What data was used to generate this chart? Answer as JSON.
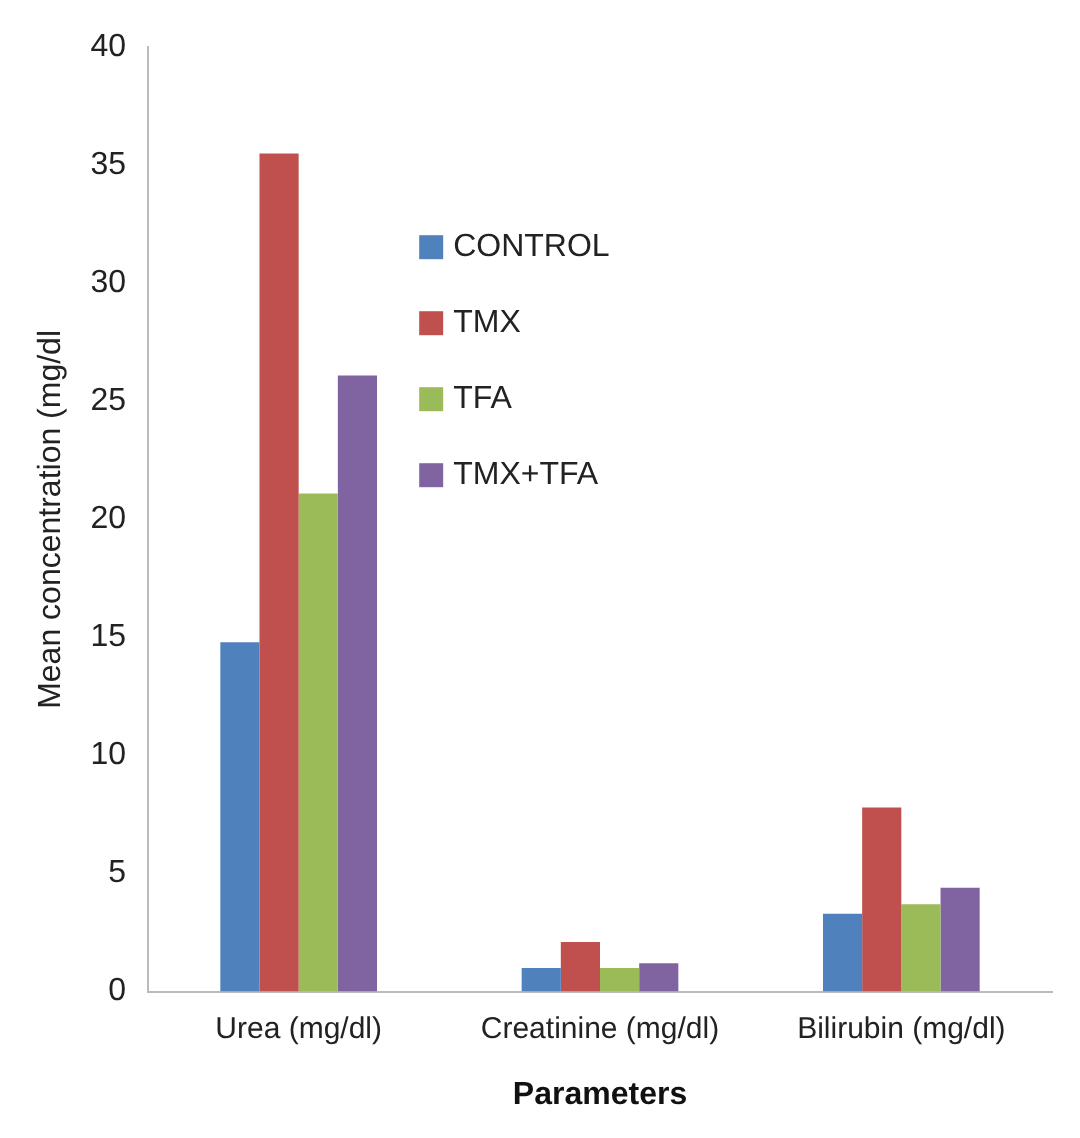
{
  "chart_data": {
    "type": "bar",
    "xlabel": "Parameters",
    "ylabel": "Mean concentration (mg/dl",
    "categories": [
      "Urea (mg/dl)",
      "Creatinine (mg/dl)",
      "Bilirubin (mg/dl)"
    ],
    "series": [
      {
        "name": "CONTROL",
        "color": "#4f81bd",
        "values": [
          14.8,
          1.0,
          3.3
        ]
      },
      {
        "name": "TMX",
        "color": "#c0504d",
        "values": [
          35.5,
          2.1,
          7.8
        ]
      },
      {
        "name": "TFA",
        "color": "#9bbb59",
        "values": [
          21.1,
          1.0,
          3.7
        ]
      },
      {
        "name": "TMX+TFA",
        "color": "#8064a2",
        "values": [
          26.1,
          1.2,
          4.4
        ]
      }
    ],
    "ylim": [
      0,
      40
    ],
    "yticks": [
      0,
      5,
      10,
      15,
      20,
      25,
      30,
      35,
      40
    ],
    "grid": false,
    "legend": "top"
  }
}
